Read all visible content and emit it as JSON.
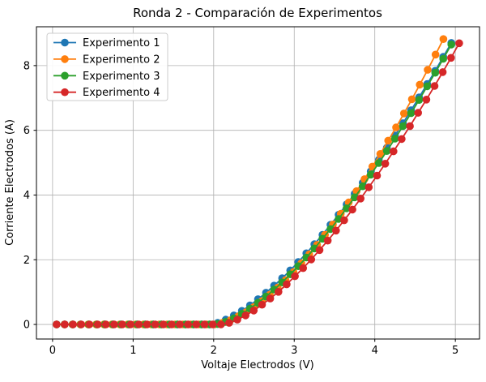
{
  "figure": {
    "background": "#ffffff",
    "frame_color": "#000000",
    "grid_color": "#b0b0b0"
  },
  "chart_data": {
    "type": "line",
    "title": "Ronda 2 - Comparación de Experimentos",
    "xlabel": "Voltaje Electrodos (V)",
    "ylabel": "Corriente Electrodos (A)",
    "xlim": [
      -0.2,
      5.3
    ],
    "ylim": [
      -0.45,
      9.2
    ],
    "xticks": [
      0,
      1,
      2,
      3,
      4,
      5
    ],
    "yticks": [
      0,
      2,
      4,
      6,
      8
    ],
    "grid": true,
    "marker": "circle",
    "legend_position": "upper-left",
    "series": [
      {
        "name": "Experimento 1",
        "color": "#1f77b4",
        "x": [
          0.05,
          0.15,
          0.25,
          0.35,
          0.45,
          0.55,
          0.65,
          0.75,
          0.85,
          0.95,
          1.05,
          1.15,
          1.25,
          1.35,
          1.45,
          1.55,
          1.65,
          1.75,
          1.85,
          1.95,
          2.05,
          2.15,
          2.25,
          2.35,
          2.45,
          2.55,
          2.65,
          2.75,
          2.85,
          2.95,
          3.05,
          3.15,
          3.25,
          3.35,
          3.45,
          3.55,
          3.65,
          3.75,
          3.85,
          3.95,
          4.05,
          4.15,
          4.25,
          4.35,
          4.45,
          4.55,
          4.65,
          4.75,
          4.85,
          4.95
        ],
        "y": [
          0,
          0,
          0,
          0,
          0,
          0,
          0,
          0,
          0,
          0,
          0,
          0,
          0,
          0,
          0,
          0,
          0,
          0,
          0,
          0,
          0.05,
          0.15,
          0.28,
          0.42,
          0.59,
          0.78,
          0.98,
          1.2,
          1.43,
          1.67,
          1.93,
          2.2,
          2.48,
          2.77,
          3.08,
          3.39,
          3.71,
          4.04,
          4.38,
          4.73,
          5.09,
          5.46,
          5.84,
          6.22,
          6.62,
          7.02,
          7.43,
          7.84,
          8.27,
          8.7
        ]
      },
      {
        "name": "Experimento 2",
        "color": "#ff7f0e",
        "x": [
          0.05,
          0.148,
          0.246,
          0.344,
          0.442,
          0.54,
          0.638,
          0.736,
          0.834,
          0.932,
          1.03,
          1.128,
          1.226,
          1.324,
          1.422,
          1.52,
          1.618,
          1.716,
          1.814,
          1.912,
          2.01,
          2.108,
          2.206,
          2.304,
          2.402,
          2.5,
          2.598,
          2.696,
          2.794,
          2.892,
          2.99,
          3.088,
          3.186,
          3.284,
          3.382,
          3.48,
          3.578,
          3.676,
          3.774,
          3.872,
          3.97,
          4.068,
          4.166,
          4.264,
          4.362,
          4.46,
          4.558,
          4.656,
          4.754,
          4.852
        ],
        "y": [
          0,
          0,
          0,
          0,
          0,
          0,
          0,
          0,
          0,
          0,
          0,
          0,
          0,
          0,
          0,
          0,
          0,
          0,
          0,
          0,
          0,
          0.05,
          0.13,
          0.25,
          0.38,
          0.54,
          0.72,
          0.92,
          1.14,
          1.37,
          1.62,
          1.89,
          2.17,
          2.46,
          2.77,
          3.09,
          3.42,
          3.77,
          4.12,
          4.49,
          4.88,
          5.27,
          5.68,
          6.09,
          6.52,
          6.96,
          7.41,
          7.87,
          8.34,
          8.82
        ]
      },
      {
        "name": "Experimento 3",
        "color": "#2ca02c",
        "x": [
          0.05,
          0.15,
          0.25,
          0.35,
          0.45,
          0.55,
          0.65,
          0.75,
          0.85,
          0.95,
          1.05,
          1.15,
          1.25,
          1.35,
          1.45,
          1.55,
          1.65,
          1.75,
          1.85,
          1.95,
          2.05,
          2.15,
          2.25,
          2.35,
          2.45,
          2.55,
          2.65,
          2.75,
          2.85,
          2.95,
          3.05,
          3.15,
          3.25,
          3.35,
          3.45,
          3.55,
          3.65,
          3.75,
          3.85,
          3.95,
          4.05,
          4.15,
          4.25,
          4.35,
          4.45,
          4.55,
          4.65,
          4.75,
          4.85,
          4.95
        ],
        "y": [
          0,
          0,
          0,
          0,
          0,
          0,
          0,
          0,
          0,
          0,
          0,
          0,
          0,
          0,
          0,
          0,
          0,
          0,
          0,
          0,
          0.01,
          0.08,
          0.19,
          0.33,
          0.49,
          0.67,
          0.86,
          1.08,
          1.3,
          1.55,
          1.8,
          2.07,
          2.35,
          2.65,
          2.95,
          3.26,
          3.59,
          3.93,
          4.27,
          4.63,
          4.99,
          5.36,
          5.74,
          6.13,
          6.53,
          6.94,
          7.36,
          7.78,
          8.21,
          8.65
        ]
      },
      {
        "name": "Experimento 4",
        "color": "#d62728",
        "x": [
          0.05,
          0.152,
          0.254,
          0.356,
          0.458,
          0.56,
          0.662,
          0.764,
          0.866,
          0.968,
          1.07,
          1.172,
          1.274,
          1.376,
          1.478,
          1.58,
          1.682,
          1.784,
          1.886,
          1.988,
          2.09,
          2.192,
          2.294,
          2.396,
          2.498,
          2.6,
          2.702,
          2.804,
          2.906,
          3.008,
          3.11,
          3.212,
          3.314,
          3.416,
          3.518,
          3.62,
          3.722,
          3.824,
          3.926,
          4.028,
          4.13,
          4.232,
          4.334,
          4.436,
          4.538,
          4.64,
          4.742,
          4.844,
          4.946,
          5.048
        ],
        "y": [
          0,
          0,
          0,
          0,
          0,
          0,
          0,
          0,
          0,
          0,
          0,
          0,
          0,
          0,
          0,
          0,
          0,
          0,
          0,
          0,
          0,
          0.05,
          0.15,
          0.28,
          0.43,
          0.61,
          0.8,
          1.01,
          1.24,
          1.49,
          1.74,
          2.01,
          2.3,
          2.59,
          2.9,
          3.22,
          3.55,
          3.89,
          4.24,
          4.6,
          4.97,
          5.35,
          5.73,
          6.13,
          6.54,
          6.95,
          7.37,
          7.8,
          8.24,
          8.69
        ]
      }
    ]
  }
}
